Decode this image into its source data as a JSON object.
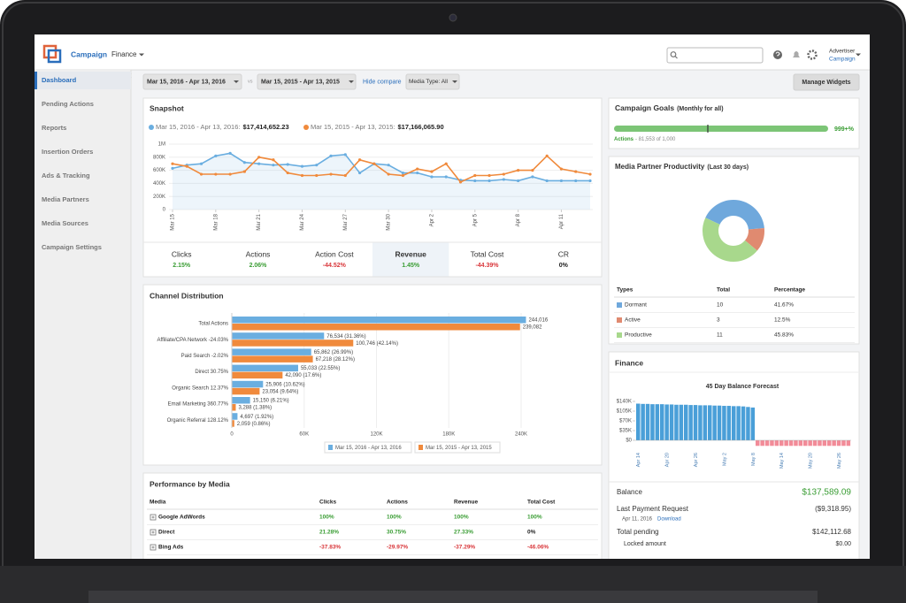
{
  "header": {
    "brand": "Campaign",
    "menu": "Finance",
    "user_role": "Advertiser",
    "user_account": "Campaign"
  },
  "sidebar": {
    "items": [
      "Dashboard",
      "Pending Actions",
      "Reports",
      "Insertion Orders",
      "Ads & Tracking",
      "Media Partners",
      "Media Sources",
      "Campaign Settings"
    ],
    "active": 0
  },
  "toolbar": {
    "date_range": "Mar 15, 2016 - Apr 13, 2016",
    "vs": "vs",
    "compare_range": "Mar 15, 2015 - Apr 13, 2015",
    "hide_compare": "Hide compare",
    "media_type": "Media Type: All",
    "manage_widgets": "Manage Widgets"
  },
  "snapshot": {
    "title": "Snapshot",
    "chart": {
      "type": "line",
      "categories": [
        "Mar 15",
        null,
        null,
        "Mar 18",
        null,
        null,
        "Mar 21",
        null,
        null,
        "Mar 24",
        null,
        null,
        "Mar 27",
        null,
        null,
        "Mar 30",
        null,
        null,
        "Apr 2",
        null,
        null,
        "Apr 5",
        null,
        null,
        "Apr 8",
        null,
        null,
        "Apr 11",
        null,
        null
      ],
      "series": [
        {
          "name": "Mar 15, 2016 - Apr 13, 2016:",
          "total": "$17,414,652.23",
          "color": "#6aaee0",
          "area": true,
          "values": [
            630000,
            680000,
            700000,
            820000,
            860000,
            720000,
            700000,
            680000,
            690000,
            660000,
            680000,
            820000,
            840000,
            560000,
            700000,
            680000,
            560000,
            560000,
            500000,
            500000,
            450000,
            440000,
            440000,
            460000,
            440000,
            500000,
            440000,
            440000,
            440000,
            440000
          ]
        },
        {
          "name": "Mar 15, 2015 - Apr 13, 2015:",
          "total": "$17,166,065.90",
          "color": "#f08a3c",
          "area": false,
          "values": [
            700000,
            660000,
            540000,
            540000,
            540000,
            580000,
            800000,
            760000,
            560000,
            520000,
            520000,
            540000,
            520000,
            760000,
            700000,
            540000,
            520000,
            620000,
            580000,
            700000,
            420000,
            520000,
            520000,
            540000,
            600000,
            600000,
            820000,
            620000,
            580000,
            540000
          ]
        }
      ],
      "ylim": [
        0,
        1000000
      ],
      "yticks": [
        0,
        {
          "value": 200000,
          "label": "200K"
        },
        {
          "value": 400000,
          "label": "400K"
        },
        {
          "value": 600000,
          "label": "600K"
        },
        {
          "value": 800000,
          "label": "800K"
        },
        {
          "value": 1000000,
          "label": "1M"
        }
      ],
      "grid": true
    },
    "metrics": [
      {
        "label": "Clicks",
        "change": "2.15%"
      },
      {
        "label": "Actions",
        "change": "2.06%"
      },
      {
        "label": "Action Cost",
        "change": "-44.52%"
      },
      {
        "label": "Revenue",
        "change": "1.45%"
      },
      {
        "label": "Total Cost",
        "change": "-44.39%"
      },
      {
        "label": "CR",
        "change": "0%"
      }
    ],
    "highlighted": 3
  },
  "channel_distribution": {
    "title": "Channel Distribution",
    "chart": {
      "type": "hbar",
      "categories": [
        "Total Actions",
        "Affiliate/CPA Network -24.03%",
        "Paid Search -2.02%",
        "Direct 30.75%",
        "Organic Search 12.37%",
        "Email Marketing 360.77%",
        "Organic Referral 128.12%"
      ],
      "series": [
        {
          "name": "Mar 15, 2016 - Apr 13, 2016",
          "color": "#6aaee0",
          "values": [
            244016,
            76534,
            65862,
            55033,
            25906,
            15150,
            4697
          ],
          "value_labels": [
            "244,016",
            "76,534 (31.36%)",
            "65,862 (26.99%)",
            "55,033 (22.55%)",
            "25,906 (10.62%)",
            "15,150 (6.21%)",
            "4,697 (1.92%)"
          ]
        },
        {
          "name": "Mar 15, 2015 - Apr 13, 2015",
          "color": "#f08a3c",
          "values": [
            239082,
            100746,
            67218,
            42090,
            23054,
            3288,
            2059
          ],
          "value_labels": [
            "239,082",
            "100,746 (42.14%)",
            "67,218 (28.12%)",
            "42,090 (17.6%)",
            "23,054 (9.64%)",
            "3,288 (1.38%)",
            "2,059 (0.86%)"
          ]
        }
      ],
      "xlim": [
        0,
        250000
      ],
      "xticks": [
        0,
        {
          "value": 60000,
          "label": "60K"
        },
        {
          "value": 120000,
          "label": "120K"
        },
        {
          "value": 180000,
          "label": "180K"
        },
        {
          "value": 240000,
          "label": "240K"
        }
      ],
      "grid": true
    }
  },
  "performance_by_media": {
    "title": "Performance by Media",
    "columns": [
      "Media",
      "Clicks",
      "Actions",
      "Revenue",
      "Total Cost"
    ],
    "rows": [
      [
        "Google AdWords",
        "100%",
        "100%",
        "100%",
        "100%"
      ],
      [
        "Direct",
        "21.28%",
        "30.75%",
        "27.33%",
        "0%"
      ],
      [
        "Bing Ads",
        "-37.83%",
        "-29.97%",
        "-37.29%",
        "-46.06%"
      ]
    ]
  },
  "campaign_goals": {
    "title": "Campaign Goals",
    "subtitle": "(Monthly for all)",
    "progress_label": "999+%",
    "actions_label": "Actions",
    "actions_detail": "- 81,553 of 1,000"
  },
  "media_partner_productivity": {
    "title": "Media Partner Productivity",
    "subtitle": "(Last 30 days)",
    "chart": {
      "type": "donut",
      "categories": [
        "Dormant",
        "Active",
        "Productive"
      ],
      "totals": [
        10,
        3,
        11
      ],
      "values": [
        41.67,
        12.5,
        45.83
      ],
      "value_labels": [
        "41.67%",
        "12.5%",
        "45.83%"
      ],
      "colors": [
        "#6fa8dc",
        "#e08a70",
        "#a8d88c"
      ]
    },
    "columns": [
      "Types",
      "Total",
      "Percentage"
    ]
  },
  "finance": {
    "title": "Finance",
    "chart": {
      "type": "bar",
      "title": "45 Day Balance Forecast",
      "categories": [
        "Apr 14",
        null,
        null,
        null,
        null,
        null,
        "Apr 20",
        null,
        null,
        null,
        null,
        null,
        "Apr 26",
        null,
        null,
        null,
        null,
        null,
        "May 2",
        null,
        null,
        null,
        null,
        null,
        "May 8",
        null,
        null,
        null,
        null,
        null,
        "May 14",
        null,
        null,
        null,
        null,
        null,
        "May 20",
        null,
        null,
        null,
        null,
        null,
        "May 26",
        null,
        null
      ],
      "values": [
        132000,
        131000,
        131000,
        130000,
        130000,
        130000,
        129000,
        129000,
        128000,
        128000,
        128000,
        127000,
        127000,
        126000,
        126000,
        126000,
        125000,
        125000,
        124000,
        124000,
        123000,
        123000,
        122000,
        120000,
        118000,
        -20000,
        -20000,
        -20000,
        -20000,
        -20000,
        -20000,
        -20000,
        -20000,
        -20000,
        -20000,
        -20000,
        -20000,
        -20000,
        -20000,
        -20000,
        -20000,
        -20000,
        -20000,
        -20000,
        -20000
      ],
      "ylim": [
        -30000,
        140000
      ],
      "yticks": [
        {
          "value": 0,
          "label": "$0"
        },
        {
          "value": 35000,
          "label": "$35K"
        },
        {
          "value": 70000,
          "label": "$70K"
        },
        {
          "value": 105000,
          "label": "$105K"
        },
        {
          "value": 140000,
          "label": "$140K"
        }
      ],
      "colors": {
        "positive": "#4a9fd8",
        "negative": "#f28b98"
      }
    },
    "summary": [
      {
        "label": "Balance",
        "value": "$137,589.09"
      },
      {
        "label": "Last Payment Request",
        "value": "($9,318.95)"
      },
      {
        "label": "Total pending",
        "value": "$142,112.68"
      },
      {
        "label": "Locked amount",
        "value": "$0.00"
      }
    ],
    "payment_date": "Apr 11, 2016",
    "download": "Download"
  }
}
